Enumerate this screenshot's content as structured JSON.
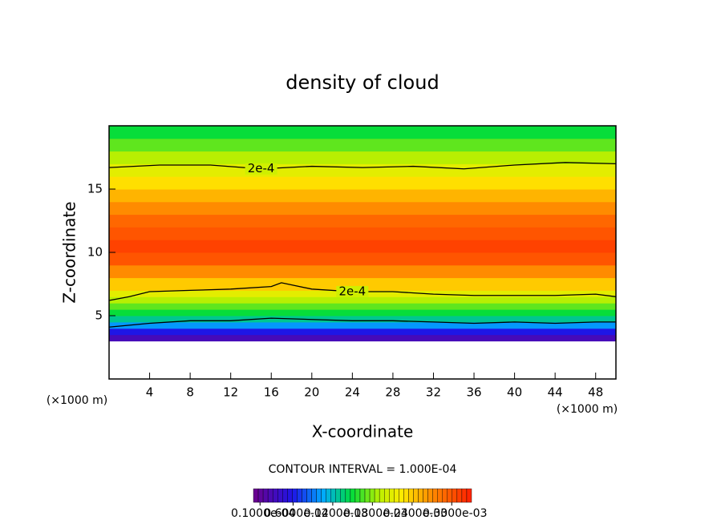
{
  "chart_data": {
    "type": "contour",
    "title": "density of cloud",
    "x_label": "X-coordinate",
    "y_label": "Z-coordinate",
    "x_unit": "(×1000 m)",
    "y_unit": "(×1000 m)",
    "contour_interval": "CONTOUR INTERVAL = 1.000E-04",
    "xlim": [
      0,
      50
    ],
    "ylim": [
      0,
      20
    ],
    "xticks": [
      4,
      8,
      12,
      16,
      20,
      24,
      28,
      32,
      36,
      40,
      44,
      48
    ],
    "yticks": [
      5,
      10,
      15
    ],
    "field": {
      "z_edges": [
        3,
        3.5,
        4,
        4.5,
        5,
        5.5,
        6,
        6.5,
        7,
        8,
        9,
        10,
        11,
        12,
        13,
        14,
        15,
        16,
        17,
        18,
        19,
        20
      ],
      "values": [
        3e-05,
        6e-05,
        0.0001,
        0.00013,
        0.00015,
        0.00017,
        0.00019,
        0.00021,
        0.00024,
        0.00027,
        0.0003,
        0.00031,
        0.0003,
        0.00029,
        0.00027,
        0.00025,
        0.00023,
        0.00021,
        0.00019,
        0.00017,
        0.00015
      ]
    },
    "contours": [
      {
        "level": 0.0002,
        "label": "2e-4",
        "x": [
          0,
          5,
          10,
          15,
          20,
          25,
          30,
          35,
          40,
          45,
          50
        ],
        "y": [
          16.7,
          16.9,
          16.9,
          16.6,
          16.8,
          16.7,
          16.8,
          16.6,
          16.9,
          17.1,
          17.0
        ]
      },
      {
        "level": 0.0002,
        "label": "2e-4",
        "x": [
          0,
          2,
          4,
          8,
          12,
          16,
          17,
          20,
          24,
          28,
          32,
          36,
          40,
          44,
          48,
          50
        ],
        "y": [
          6.2,
          6.5,
          6.9,
          7.0,
          7.1,
          7.3,
          7.6,
          7.1,
          6.9,
          6.9,
          6.7,
          6.6,
          6.6,
          6.6,
          6.7,
          6.5
        ]
      },
      {
        "level": 0.0001,
        "x": [
          0,
          4,
          8,
          12,
          16,
          20,
          24,
          28,
          32,
          36,
          40,
          44,
          48,
          50
        ],
        "y": [
          4.1,
          4.4,
          4.6,
          4.6,
          4.8,
          4.7,
          4.6,
          4.6,
          4.5,
          4.4,
          4.5,
          4.4,
          4.5,
          4.5
        ]
      }
    ],
    "colorbar": {
      "clim": [
        0,
        0.00033
      ],
      "ticks": [
        {
          "value": 1e-05,
          "label": "0.1000e-04"
        },
        {
          "value": 6e-05,
          "label": "0.6000e-04"
        },
        {
          "value": 0.00012,
          "label": "0.1200e-03"
        },
        {
          "value": 0.00018,
          "label": "0.1800e-03"
        },
        {
          "value": 0.00024,
          "label": "0.2400e-03"
        },
        {
          "value": 0.0003,
          "label": "0.3000e-03"
        }
      ]
    }
  }
}
